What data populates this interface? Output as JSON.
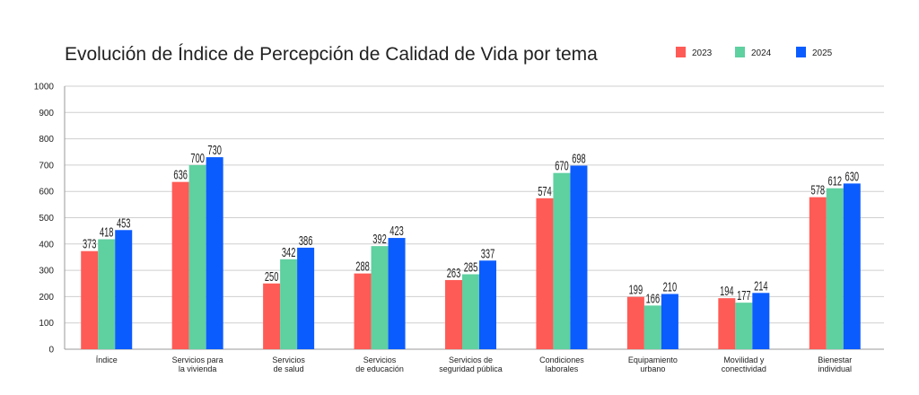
{
  "chart_data": {
    "type": "bar",
    "title": "Evolución de Índice de Percepción de Calidad de Vida por tema",
    "xlabel": "",
    "ylabel": "",
    "ylim": [
      0,
      1000
    ],
    "yticks": [
      "0",
      "100",
      "200",
      "300",
      "400",
      "500",
      "600",
      "700",
      "800",
      "900",
      "1000"
    ],
    "grid": true,
    "legend_position": "top-right",
    "categories": [
      [
        "Índice"
      ],
      [
        "Servicios para",
        "la vivienda"
      ],
      [
        "Servicios",
        "de salud"
      ],
      [
        "Servicios",
        "de educación"
      ],
      [
        "Servicios de",
        "seguridad pública"
      ],
      [
        "Condiciones",
        "laborales"
      ],
      [
        "Equipamiento",
        "urbano"
      ],
      [
        "Movilidad y",
        "conectividad"
      ],
      [
        "Bienestar",
        "individual"
      ]
    ],
    "series": [
      {
        "name": "2023",
        "color": "#ff5b56",
        "values": [
          373,
          636,
          250,
          288,
          263,
          574,
          199,
          194,
          578
        ]
      },
      {
        "name": "2024",
        "color": "#5fd0a0",
        "values": [
          418,
          700,
          342,
          392,
          285,
          670,
          166,
          177,
          612
        ]
      },
      {
        "name": "2025",
        "color": "#0b5cff",
        "values": [
          453,
          730,
          386,
          423,
          337,
          698,
          210,
          214,
          630
        ]
      }
    ]
  }
}
